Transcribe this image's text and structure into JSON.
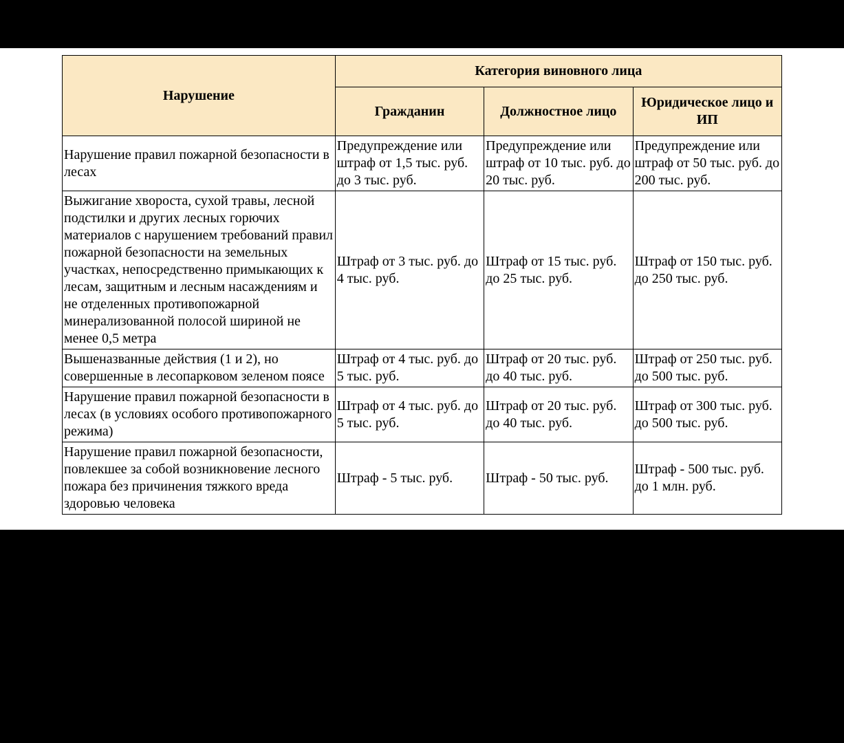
{
  "table": {
    "type": "table",
    "header_bg": "#fbe8c3",
    "border_color": "#000000",
    "background_color": "#ffffff",
    "page_background": "#000000",
    "font_family": "Times New Roman",
    "font_size_pt": 15,
    "columns": {
      "violation": "Нарушение",
      "category_group": "Категория виновного лица",
      "citizen": "Гражданин",
      "official": "Должностное лицо",
      "legal": "Юридическое лицо и ИП"
    },
    "rows": [
      {
        "violation": "Нарушение правил пожарной безопасности в лесах",
        "citizen": "Предупреждение или штраф от 1,5 тыс. руб. до 3 тыс. руб.",
        "official": "Предупреждение или штраф от 10 тыс. руб. до 20 тыс. руб.",
        "legal": "Предупреждение или штраф от 50 тыс. руб. до 200 тыс. руб."
      },
      {
        "violation": "Выжигание хвороста, сухой травы, лесной подстилки и других лесных горючих материалов с нарушением требований правил пожарной безопасности на земельных участках, непосредственно примыкающих к лесам, защитным и лесным насаждениям и не отделенных противопожарной минерализованной полосой шириной не менее 0,5 метра",
        "citizen": "Штраф от 3 тыс. руб. до 4 тыс. руб.",
        "official": "Штраф от 15 тыс. руб. до 25 тыс. руб.",
        "legal": "Штраф от 150 тыс. руб. до 250 тыс. руб."
      },
      {
        "violation": "Вышеназванные действия (1 и 2), но совершенные в лесопарковом зеленом поясе",
        "citizen": "Штраф от 4 тыс. руб. до 5 тыс. руб.",
        "official": "Штраф от 20 тыс. руб. до 40 тыс. руб.",
        "legal": "Штраф от 250 тыс. руб. до 500 тыс. руб."
      },
      {
        "violation": "Нарушение правил пожарной безопасности в лесах (в условиях особого противопожарного режима)",
        "citizen": "Штраф от 4 тыс. руб. до 5 тыс. руб.",
        "official": "Штраф от 20 тыс. руб. до 40 тыс. руб.",
        "legal": "Штраф от 300 тыс. руб. до 500 тыс. руб."
      },
      {
        "violation": "Нарушение правил пожарной безопасности, повлекшее за собой возникновение лесного пожара без причинения тяжкого вреда здоровью человека",
        "citizen": "Штраф - 5 тыс. руб.",
        "official": "Штраф - 50 тыс. руб.",
        "legal": "Штраф - 500 тыс. руб. до 1 млн. руб."
      }
    ]
  }
}
